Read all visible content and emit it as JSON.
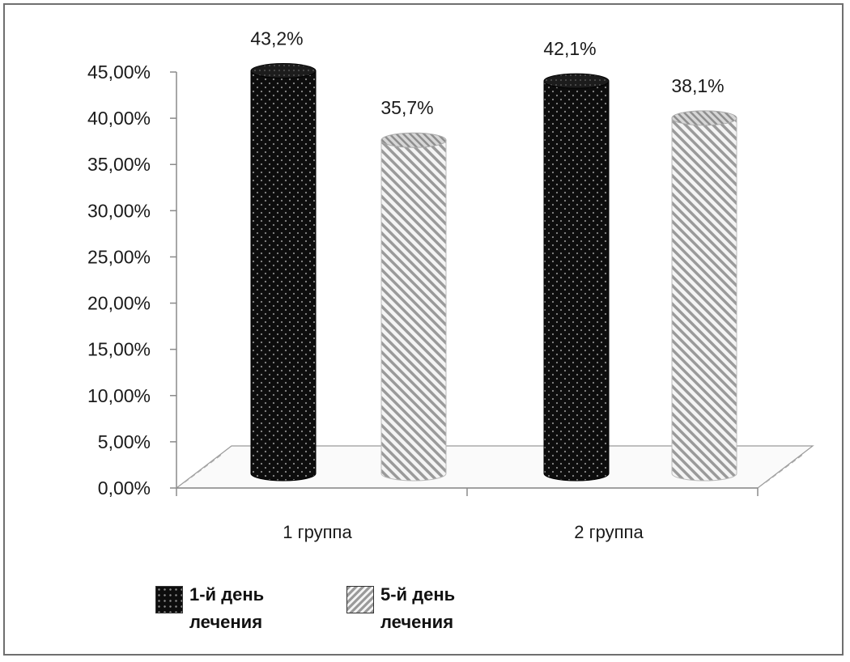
{
  "chart_data": {
    "type": "bar",
    "categories": [
      "1 группа",
      "2 группа"
    ],
    "series": [
      {
        "name": "1-й день\nлечения",
        "values": [
          43.2,
          42.1
        ],
        "labels": [
          "43,2%",
          "42,1%"
        ],
        "fill": "dots"
      },
      {
        "name": "5-й день\nлечения",
        "values": [
          35.7,
          38.1
        ],
        "labels": [
          "35,7%",
          "38,1%"
        ],
        "fill": "stripes"
      }
    ],
    "ylim": [
      0,
      45
    ],
    "yticks": [
      "0,00%",
      "5,00%",
      "10,00%",
      "15,00%",
      "20,00%",
      "25,00%",
      "30,00%",
      "35,00%",
      "40,00%",
      "45,00%"
    ],
    "grid": false,
    "legend_position": "bottom-left",
    "bar_shape": "cylinder",
    "colors": {
      "series1": "#111111",
      "series2": "#c8c8c8",
      "axis": "#8a8a8a"
    }
  }
}
